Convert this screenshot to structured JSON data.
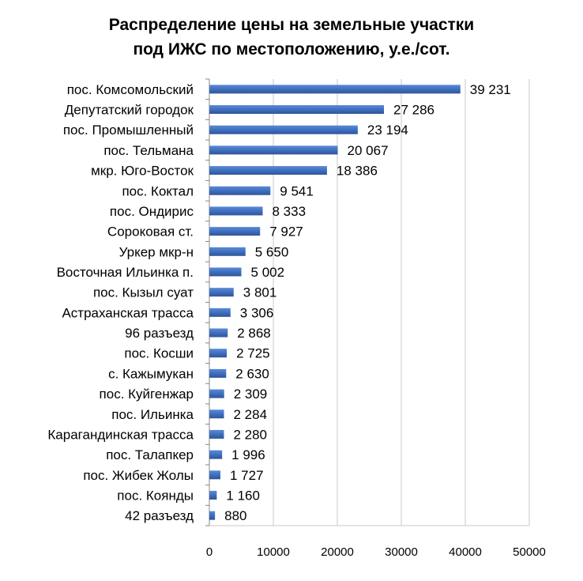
{
  "chart_data": {
    "type": "bar",
    "orientation": "horizontal",
    "title_lines": [
      "Распределение цены на земельные участки",
      "под ИЖС по местоположению, у.е./сот."
    ],
    "categories": [
      "пос. Комсомольский",
      "Депутатский городок",
      "пос. Промышленный",
      "пос. Тельмана",
      "мкр. Юго-Восток",
      "пос. Коктал",
      "пос. Ондирис",
      "Сороковая ст.",
      "Уркер мкр-н",
      "Восточная Ильинка п.",
      "пос. Кызыл суат",
      "Астраханская трасса",
      "96 разъезд",
      "пос. Косши",
      "с. Кажымукан",
      "пос. Куйгенжар",
      "пос. Ильинка",
      "Карагандинская трасса",
      "пос. Талапкер",
      "пос. Жибек Жолы",
      "пос. Коянды",
      "42 разъезд"
    ],
    "values": [
      39231,
      27286,
      23194,
      20067,
      18386,
      9541,
      8333,
      7927,
      5650,
      5002,
      3801,
      3306,
      2868,
      2725,
      2630,
      2309,
      2284,
      2280,
      1996,
      1727,
      1160,
      880
    ],
    "value_labels": [
      "39 231",
      "27 286",
      "23 194",
      "20 067",
      "18 386",
      "9 541",
      "8 333",
      "7 927",
      "5 650",
      "5 002",
      "3 801",
      "3 306",
      "2 868",
      "2 725",
      "2 630",
      "2 309",
      "2 284",
      "2 280",
      "1 996",
      "1 727",
      "1 160",
      "880"
    ],
    "xlim": [
      0,
      50000
    ],
    "xticks": [
      0,
      10000,
      20000,
      30000,
      40000,
      50000
    ],
    "xtick_labels": [
      "0",
      "10000",
      "20000",
      "30000",
      "40000",
      "50000"
    ],
    "grid": "vertical",
    "legend": "none",
    "bar_color": "#4472c4",
    "grid_color": "#c8c8c8"
  }
}
